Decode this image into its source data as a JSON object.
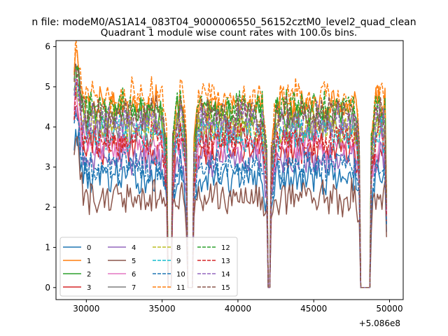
{
  "chart_data": {
    "type": "line",
    "suptitle": "n file: modeM0/AS1A14_083T04_9000006550_56152cztM0_level2_quad_clean",
    "title": "Quadrant 1 module wise count rates with 100.0s bins.",
    "xlabel": "",
    "ylabel": "",
    "x_offset_label": "+5.086e8",
    "xlim": [
      28000,
      50900
    ],
    "ylim": [
      -0.3,
      6.15
    ],
    "xticks": [
      30000,
      35000,
      40000,
      45000,
      50000
    ],
    "xtick_labels": [
      "30000",
      "35000",
      "40000",
      "45000",
      "50000"
    ],
    "yticks": [
      0,
      1,
      2,
      3,
      4,
      5,
      6
    ],
    "ytick_labels": [
      "0",
      "1",
      "2",
      "3",
      "4",
      "5",
      "6"
    ],
    "legend_placement": "lower-left",
    "x_start": 29200,
    "x_end": 49800,
    "bin": 100,
    "gaps": [
      [
        35380,
        35600
      ],
      [
        36680,
        37020
      ],
      [
        41950,
        42180
      ],
      [
        48100,
        48700
      ]
    ],
    "series": [
      {
        "name": "0",
        "color": "#1f77b4",
        "style": "solid",
        "level": 2.75
      },
      {
        "name": "1",
        "color": "#ff7f0e",
        "style": "solid",
        "level": 4.55
      },
      {
        "name": "2",
        "color": "#2ca02c",
        "style": "solid",
        "level": 4.3
      },
      {
        "name": "3",
        "color": "#d62728",
        "style": "solid",
        "level": 3.45
      },
      {
        "name": "4",
        "color": "#9467bd",
        "style": "solid",
        "level": 3.25
      },
      {
        "name": "5",
        "color": "#8c564b",
        "style": "solid",
        "level": 2.25
      },
      {
        "name": "6",
        "color": "#e377c2",
        "style": "solid",
        "level": 3.55
      },
      {
        "name": "7",
        "color": "#7f7f7f",
        "style": "solid",
        "level": 3.95
      },
      {
        "name": "8",
        "color": "#bcbd22",
        "style": "dashed",
        "level": 4.05
      },
      {
        "name": "9",
        "color": "#17becf",
        "style": "dashed",
        "level": 3.85
      },
      {
        "name": "10",
        "color": "#1f77b4",
        "style": "dashed",
        "level": 3.0
      },
      {
        "name": "11",
        "color": "#ff7f0e",
        "style": "dashed",
        "level": 4.75
      },
      {
        "name": "12",
        "color": "#2ca02c",
        "style": "dashed",
        "level": 4.5
      },
      {
        "name": "13",
        "color": "#d62728",
        "style": "dashed",
        "level": 3.7
      },
      {
        "name": "14",
        "color": "#9467bd",
        "style": "dashed",
        "level": 4.15
      },
      {
        "name": "15",
        "color": "#8c564b",
        "style": "dashed",
        "level": 4.35
      }
    ]
  }
}
